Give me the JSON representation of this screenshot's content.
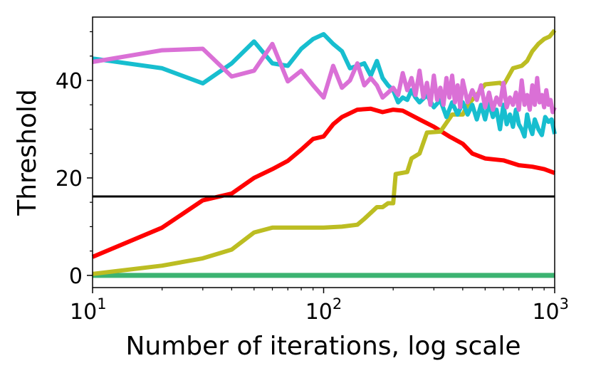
{
  "chart_data": {
    "type": "line",
    "xlabel": "Number of iterations, log scale",
    "ylabel": "Threshold",
    "xscale": "log",
    "xlim": [
      10,
      1000
    ],
    "ylim": [
      -2.5,
      53
    ],
    "xticks": [
      {
        "value": 10,
        "base": "10",
        "exp": "1"
      },
      {
        "value": 100,
        "base": "10",
        "exp": "2"
      },
      {
        "value": 1000,
        "base": "10",
        "exp": "3"
      }
    ],
    "yticks": [
      0,
      20,
      40
    ],
    "grid": false,
    "legend": "none",
    "hline": {
      "y": 16.2,
      "color": "#000000"
    },
    "series": [
      {
        "color": "#3cb371",
        "width": 7,
        "kind": "flat",
        "value": 0
      },
      {
        "color": "#ff0000",
        "width": 6,
        "kind": "points",
        "points": [
          [
            10,
            3.8
          ],
          [
            20,
            9.8
          ],
          [
            30,
            15.4
          ],
          [
            40,
            16.8
          ],
          [
            50,
            20.0
          ],
          [
            60,
            21.8
          ],
          [
            70,
            23.5
          ],
          [
            80,
            25.8
          ],
          [
            90,
            28.0
          ],
          [
            100,
            28.5
          ],
          [
            110,
            31.0
          ],
          [
            120,
            32.5
          ],
          [
            140,
            34.0
          ],
          [
            160,
            34.2
          ],
          [
            180,
            33.5
          ],
          [
            200,
            34.0
          ],
          [
            220,
            33.8
          ],
          [
            260,
            32.0
          ],
          [
            300,
            30.5
          ],
          [
            350,
            28.5
          ],
          [
            400,
            27.0
          ],
          [
            440,
            25.0
          ],
          [
            500,
            24.0
          ],
          [
            600,
            23.6
          ],
          [
            700,
            22.6
          ],
          [
            800,
            22.3
          ],
          [
            900,
            21.8
          ],
          [
            1000,
            21.0
          ]
        ]
      },
      {
        "color": "#bcbd22",
        "width": 6,
        "kind": "points",
        "points": [
          [
            10,
            0.3
          ],
          [
            20,
            2.0
          ],
          [
            30,
            3.5
          ],
          [
            40,
            5.3
          ],
          [
            50,
            8.8
          ],
          [
            60,
            9.8
          ],
          [
            80,
            9.8
          ],
          [
            100,
            9.8
          ],
          [
            120,
            10.0
          ],
          [
            140,
            10.4
          ],
          [
            150,
            11.6
          ],
          [
            170,
            14.0
          ],
          [
            180,
            14.0
          ],
          [
            190,
            14.8
          ],
          [
            200,
            14.8
          ],
          [
            205,
            20.8
          ],
          [
            230,
            21.2
          ],
          [
            240,
            24.0
          ],
          [
            260,
            25.0
          ],
          [
            280,
            29.3
          ],
          [
            320,
            29.5
          ],
          [
            360,
            33.0
          ],
          [
            400,
            33.0
          ],
          [
            420,
            35.0
          ],
          [
            460,
            37.0
          ],
          [
            500,
            39.2
          ],
          [
            580,
            39.5
          ],
          [
            600,
            39.0
          ],
          [
            660,
            42.5
          ],
          [
            720,
            43.0
          ],
          [
            760,
            44.0
          ],
          [
            800,
            46.0
          ],
          [
            850,
            47.5
          ],
          [
            900,
            48.5
          ],
          [
            950,
            49.0
          ],
          [
            1000,
            50.3
          ]
        ]
      },
      {
        "color": "#17becf",
        "width": 6,
        "kind": "points",
        "points": [
          [
            10,
            44.5
          ],
          [
            20,
            42.5
          ],
          [
            30,
            39.4
          ],
          [
            40,
            43.5
          ],
          [
            50,
            48.0
          ],
          [
            60,
            43.5
          ],
          [
            70,
            43.0
          ],
          [
            80,
            46.5
          ],
          [
            90,
            48.5
          ],
          [
            100,
            49.5
          ],
          [
            110,
            47.5
          ],
          [
            120,
            46.0
          ],
          [
            130,
            42.5
          ],
          [
            140,
            43.0
          ],
          [
            150,
            43.5
          ],
          [
            160,
            41.0
          ],
          [
            170,
            44.0
          ],
          [
            180,
            40.5
          ],
          [
            190,
            39.0
          ],
          [
            200,
            38.0
          ],
          [
            210,
            35.5
          ],
          [
            220,
            36.5
          ],
          [
            230,
            36.0
          ],
          [
            240,
            38.0
          ],
          [
            250,
            36.5
          ],
          [
            260,
            35.5
          ],
          [
            280,
            37.0
          ],
          [
            300,
            34.5
          ],
          [
            320,
            36.0
          ],
          [
            340,
            32.5
          ],
          [
            360,
            35.5
          ],
          [
            380,
            33.0
          ],
          [
            400,
            35.5
          ],
          [
            420,
            33.0
          ],
          [
            440,
            35.0
          ],
          [
            460,
            32.0
          ],
          [
            480,
            35.0
          ],
          [
            500,
            32.0
          ],
          [
            520,
            35.5
          ],
          [
            540,
            32.5
          ],
          [
            560,
            34.0
          ],
          [
            580,
            30.0
          ],
          [
            600,
            35.0
          ],
          [
            620,
            31.0
          ],
          [
            640,
            33.0
          ],
          [
            660,
            30.5
          ],
          [
            680,
            34.0
          ],
          [
            700,
            31.0
          ],
          [
            720,
            30.0
          ],
          [
            740,
            28.5
          ],
          [
            760,
            33.0
          ],
          [
            780,
            30.5
          ],
          [
            800,
            29.0
          ],
          [
            820,
            32.0
          ],
          [
            850,
            30.0
          ],
          [
            880,
            28.8
          ],
          [
            910,
            32.5
          ],
          [
            940,
            31.5
          ],
          [
            970,
            32.0
          ],
          [
            1000,
            29.0
          ]
        ]
      },
      {
        "color": "#da70d6",
        "width": 6,
        "kind": "points",
        "points": [
          [
            10,
            43.8
          ],
          [
            20,
            46.2
          ],
          [
            30,
            46.5
          ],
          [
            40,
            40.8
          ],
          [
            50,
            42.0
          ],
          [
            60,
            47.5
          ],
          [
            70,
            39.8
          ],
          [
            80,
            42.0
          ],
          [
            90,
            39.0
          ],
          [
            100,
            36.5
          ],
          [
            110,
            43.0
          ],
          [
            120,
            38.5
          ],
          [
            130,
            40.0
          ],
          [
            140,
            43.5
          ],
          [
            150,
            39.0
          ],
          [
            160,
            40.5
          ],
          [
            170,
            39.0
          ],
          [
            180,
            36.5
          ],
          [
            190,
            37.5
          ],
          [
            200,
            38.5
          ],
          [
            210,
            37.0
          ],
          [
            220,
            41.5
          ],
          [
            230,
            38.0
          ],
          [
            240,
            40.5
          ],
          [
            250,
            37.0
          ],
          [
            260,
            42.0
          ],
          [
            270,
            36.5
          ],
          [
            280,
            39.5
          ],
          [
            290,
            35.0
          ],
          [
            300,
            41.0
          ],
          [
            310,
            36.0
          ],
          [
            320,
            38.5
          ],
          [
            330,
            35.0
          ],
          [
            340,
            40.5
          ],
          [
            350,
            36.5
          ],
          [
            360,
            41.0
          ],
          [
            370,
            35.5
          ],
          [
            380,
            39.0
          ],
          [
            390,
            34.5
          ],
          [
            400,
            40.0
          ],
          [
            420,
            35.5
          ],
          [
            440,
            38.0
          ],
          [
            460,
            36.0
          ],
          [
            480,
            39.0
          ],
          [
            500,
            34.5
          ],
          [
            520,
            37.5
          ],
          [
            540,
            34.0
          ],
          [
            560,
            36.5
          ],
          [
            580,
            35.0
          ],
          [
            600,
            39.5
          ],
          [
            620,
            34.5
          ],
          [
            640,
            36.5
          ],
          [
            660,
            35.0
          ],
          [
            680,
            37.5
          ],
          [
            700,
            34.0
          ],
          [
            720,
            40.0
          ],
          [
            740,
            35.0
          ],
          [
            760,
            37.0
          ],
          [
            780,
            34.0
          ],
          [
            800,
            39.0
          ],
          [
            820,
            35.0
          ],
          [
            840,
            40.5
          ],
          [
            860,
            35.5
          ],
          [
            880,
            37.0
          ],
          [
            900,
            34.5
          ],
          [
            920,
            38.0
          ],
          [
            940,
            35.0
          ],
          [
            960,
            36.0
          ],
          [
            980,
            33.5
          ],
          [
            1000,
            34.5
          ]
        ]
      }
    ]
  }
}
